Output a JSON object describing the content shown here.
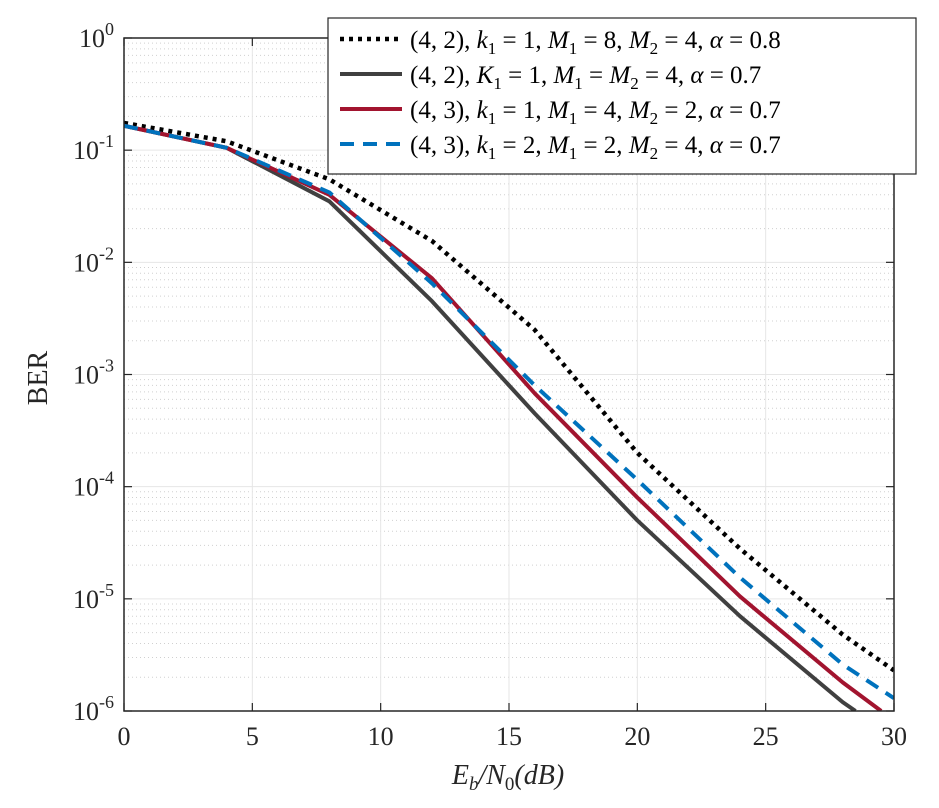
{
  "chart_data": {
    "type": "line",
    "title": "",
    "xlabel": "E_b/N_0(dB)",
    "xlabel_parts": {
      "main": "E",
      "sub1": "b",
      "mid": "/N",
      "sub2": "0",
      "tail": "(dB)"
    },
    "ylabel": "BER",
    "xlim": [
      0,
      30
    ],
    "ylim": [
      1e-06,
      1
    ],
    "yscale": "log",
    "grid": true,
    "legend_position": "top-right",
    "x_ticks": [
      0,
      5,
      10,
      15,
      20,
      25,
      30
    ],
    "x_tick_labels": [
      "0",
      "5",
      "10",
      "15",
      "20",
      "25",
      "30"
    ],
    "y_ticks": [
      {
        "value": 1,
        "base": "10",
        "exp": "0"
      },
      {
        "value": 0.1,
        "base": "10",
        "exp": "-1"
      },
      {
        "value": 0.01,
        "base": "10",
        "exp": "-2"
      },
      {
        "value": 0.001,
        "base": "10",
        "exp": "-3"
      },
      {
        "value": 0.0001,
        "base": "10",
        "exp": "-4"
      },
      {
        "value": 1e-05,
        "base": "10",
        "exp": "-5"
      },
      {
        "value": 1e-06,
        "base": "10",
        "exp": "-6"
      }
    ],
    "series": [
      {
        "name": "(4,2), k1 = 1, M1 = 8, M2 = 4,  α = 0.8",
        "color": "#000000",
        "style": "dotted",
        "x": [
          0,
          4,
          8,
          12,
          16,
          20,
          24,
          28,
          30
        ],
        "y": [
          0.175,
          0.12,
          0.055,
          0.0155,
          0.0025,
          0.0002,
          2.8e-05,
          4.8e-06,
          2.3e-06
        ]
      },
      {
        "name": "(4,2), K1 = 1, M1 = M2 = 4,  α = 0.7",
        "color": "#404040",
        "style": "solid",
        "x": [
          0,
          4,
          8,
          12,
          16,
          20,
          24,
          28,
          28.5
        ],
        "y": [
          0.165,
          0.105,
          0.035,
          0.0045,
          0.00045,
          5e-05,
          7e-06,
          1.2e-06,
          1e-06
        ]
      },
      {
        "name": "(4,3), k1 = 1, M1 = 4, M2 = 2, α = 0.7",
        "color": "#a2142f",
        "style": "solid",
        "x": [
          0,
          4,
          8,
          12,
          16,
          20,
          24,
          28,
          29.5
        ],
        "y": [
          0.165,
          0.105,
          0.04,
          0.0072,
          0.00068,
          8e-05,
          1.05e-05,
          1.8e-06,
          1e-06
        ]
      },
      {
        "name": "(4,3), k1 = 2, M1 = 2, M2 = 4, α = 0.7",
        "color": "#0072bd",
        "style": "dashed",
        "x": [
          0,
          4,
          8,
          12,
          16,
          20,
          24,
          28,
          30
        ],
        "y": [
          0.165,
          0.105,
          0.042,
          0.0065,
          0.0008,
          0.000115,
          1.55e-05,
          2.6e-06,
          1.3e-06
        ]
      }
    ],
    "legend": [
      {
        "p1": "(4, 2), ",
        "v1": "k",
        "s1": "1",
        "t1": " = 1, ",
        "v2": "M",
        "s2": "1",
        "t2": " = 8, ",
        "v3": "M",
        "s3": "2",
        "t3": " = 4,  ",
        "g": "α",
        "t4": " = 0.8"
      },
      {
        "p1": "(4, 2), ",
        "v1": "K",
        "s1": "1",
        "t1": " = 1, ",
        "v2": "M",
        "s2": "1",
        "t2": " = ",
        "v3": "M",
        "s3": "2",
        "t3": " = 4,  ",
        "g": "α",
        "t4": " = 0.7"
      },
      {
        "p1": "(4, 3), ",
        "v1": "k",
        "s1": "1",
        "t1": " = 1, ",
        "v2": "M",
        "s2": "1",
        "t2": " = 4, ",
        "v3": "M",
        "s3": "2",
        "t3": " = 2, ",
        "g": "α",
        "t4": " = 0.7"
      },
      {
        "p1": "(4, 3), ",
        "v1": "k",
        "s1": "1",
        "t1": " = 2, ",
        "v2": "M",
        "s2": "1",
        "t2": " = 2, ",
        "v3": "M",
        "s3": "2",
        "t3": " = 4, ",
        "g": "α",
        "t4": " = 0.7"
      }
    ]
  }
}
